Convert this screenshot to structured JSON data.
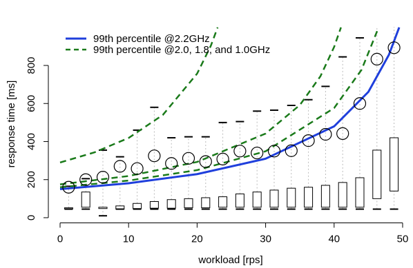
{
  "chart_data": {
    "type": "box",
    "xlabel": "workload [rps]",
    "ylabel": "response time [ms]",
    "xlim": [
      -2,
      51
    ],
    "ylim": [
      -20,
      1000
    ],
    "xticks": [
      0,
      10,
      20,
      30,
      40,
      50
    ],
    "yticks": [
      0,
      200,
      400,
      600,
      800
    ],
    "x": [
      1.25,
      3.75,
      6.25,
      8.75,
      11.25,
      13.75,
      16.25,
      18.75,
      21.25,
      23.75,
      26.25,
      28.75,
      31.25,
      33.75,
      36.25,
      38.75,
      41.25,
      43.75,
      46.25,
      48.75
    ],
    "boxes": {
      "color": "#000000",
      "low": [
        45,
        45,
        10,
        45,
        45,
        45,
        45,
        45,
        45,
        45,
        45,
        45,
        45,
        45,
        45,
        45,
        45,
        45,
        45,
        45
      ],
      "q1": [
        47,
        55,
        48,
        45,
        48,
        50,
        50,
        52,
        52,
        55,
        55,
        55,
        55,
        55,
        55,
        55,
        55,
        55,
        100,
        140
      ],
      "q3": [
        52,
        135,
        55,
        62,
        75,
        85,
        95,
        100,
        105,
        110,
        125,
        135,
        145,
        155,
        160,
        170,
        185,
        210,
        355,
        420
      ],
      "high": [
        165,
        205,
        355,
        320,
        460,
        580,
        420,
        425,
        425,
        500,
        505,
        560,
        565,
        590,
        620,
        690,
        845,
        945,
        1050,
        1080
      ]
    },
    "points": {
      "color": "#000000",
      "values": [
        160,
        200,
        213,
        270,
        258,
        325,
        285,
        312,
        295,
        308,
        350,
        340,
        350,
        352,
        405,
        438,
        442,
        600,
        833,
        893
      ]
    },
    "series": [
      {
        "name": "99th percentile @2.2GHz",
        "color": "#1f3fdc",
        "style": "solid",
        "curves": [
          {
            "x": [
              0,
              10,
              20,
              30,
              40,
              45,
              48,
              49.5
            ],
            "values": [
              150,
              181,
              229,
              310,
              480,
              661,
              856,
              1000
            ]
          }
        ]
      },
      {
        "name": "99th percentile @2.0, 1.8, and 1.0GHz",
        "color": "#1a7a1a",
        "style": "dashed",
        "curves": [
          {
            "x": [
              0,
              5,
              10,
              15,
              20,
              22,
              23
            ],
            "values": [
              290,
              343,
              419,
              540,
              757,
              903,
              1000
            ]
          },
          {
            "x": [
              0,
              10,
              20,
              30,
              35,
              38,
              40,
              41
            ],
            "values": [
              175,
              219,
              293,
              442,
              592,
              743,
              897,
              1000
            ]
          },
          {
            "x": [
              0,
              10,
              20,
              30,
              40,
              44,
              46.5
            ],
            "values": [
              160,
              195,
              250,
              349,
              576,
              777,
              1000
            ]
          }
        ]
      }
    ]
  }
}
